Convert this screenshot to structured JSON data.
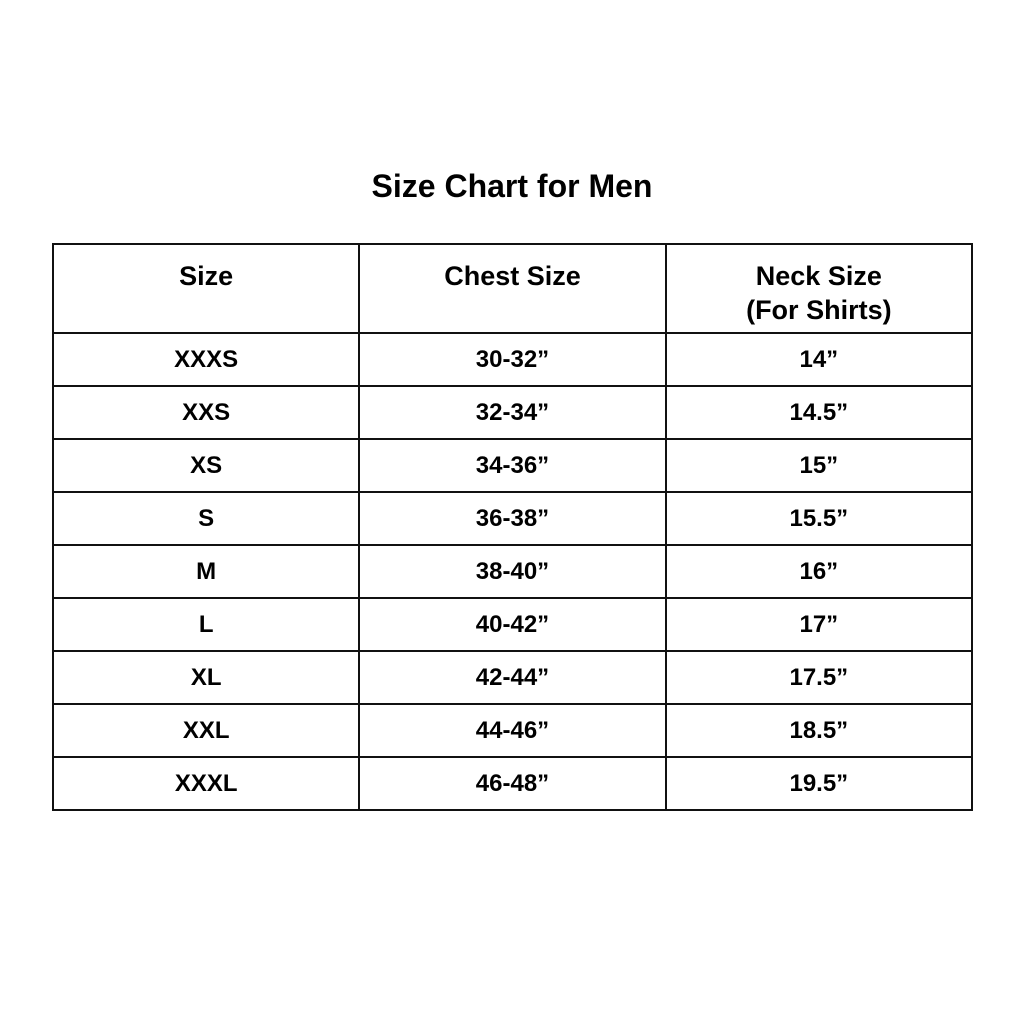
{
  "title": "Size Chart for Men",
  "table": {
    "headers": [
      [
        "Size"
      ],
      [
        "Chest Size"
      ],
      [
        "Neck Size",
        "(For Shirts)"
      ]
    ],
    "rows": [
      [
        "XXXS",
        "30-32”",
        "14”"
      ],
      [
        "XXS",
        "32-34”",
        "14.5”"
      ],
      [
        "XS",
        "34-36”",
        "15”"
      ],
      [
        "S",
        "36-38”",
        "15.5”"
      ],
      [
        "M",
        "38-40”",
        "16”"
      ],
      [
        "L",
        "40-42”",
        "17”"
      ],
      [
        "XL",
        "42-44”",
        "17.5”"
      ],
      [
        "XXL",
        "44-46”",
        "18.5”"
      ],
      [
        "XXXL",
        "46-48”",
        "19.5”"
      ]
    ]
  }
}
